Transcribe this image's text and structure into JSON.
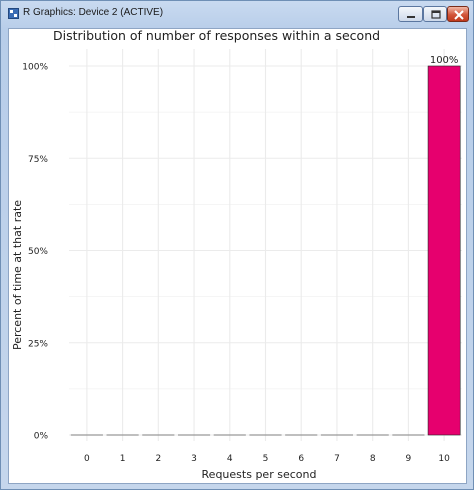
{
  "window": {
    "title": "R Graphics: Device 2 (ACTIVE)",
    "icon": "r-app-icon",
    "controls": [
      "minimize-icon",
      "maximize-icon",
      "close-icon"
    ]
  },
  "chart_data": {
    "type": "bar",
    "title": "Distribution of number of responses within a second",
    "xlabel": "Requests per second",
    "ylabel": "Percent of time at that rate",
    "categories": [
      "0",
      "1",
      "2",
      "3",
      "4",
      "5",
      "6",
      "7",
      "8",
      "9",
      "10"
    ],
    "values": [
      0,
      0,
      0,
      0,
      0,
      0,
      0,
      0,
      0,
      0,
      100
    ],
    "data_labels": [
      "",
      "",
      "",
      "",
      "",
      "",
      "",
      "",
      "",
      "",
      "100%"
    ],
    "yticks": [
      "0%",
      "25%",
      "50%",
      "75%",
      "100%"
    ],
    "ylim": [
      0,
      100
    ],
    "grid": true,
    "colors": {
      "highlight": "#e6006e",
      "zero_bar": "#999999",
      "grid": "#ebebeb"
    }
  }
}
